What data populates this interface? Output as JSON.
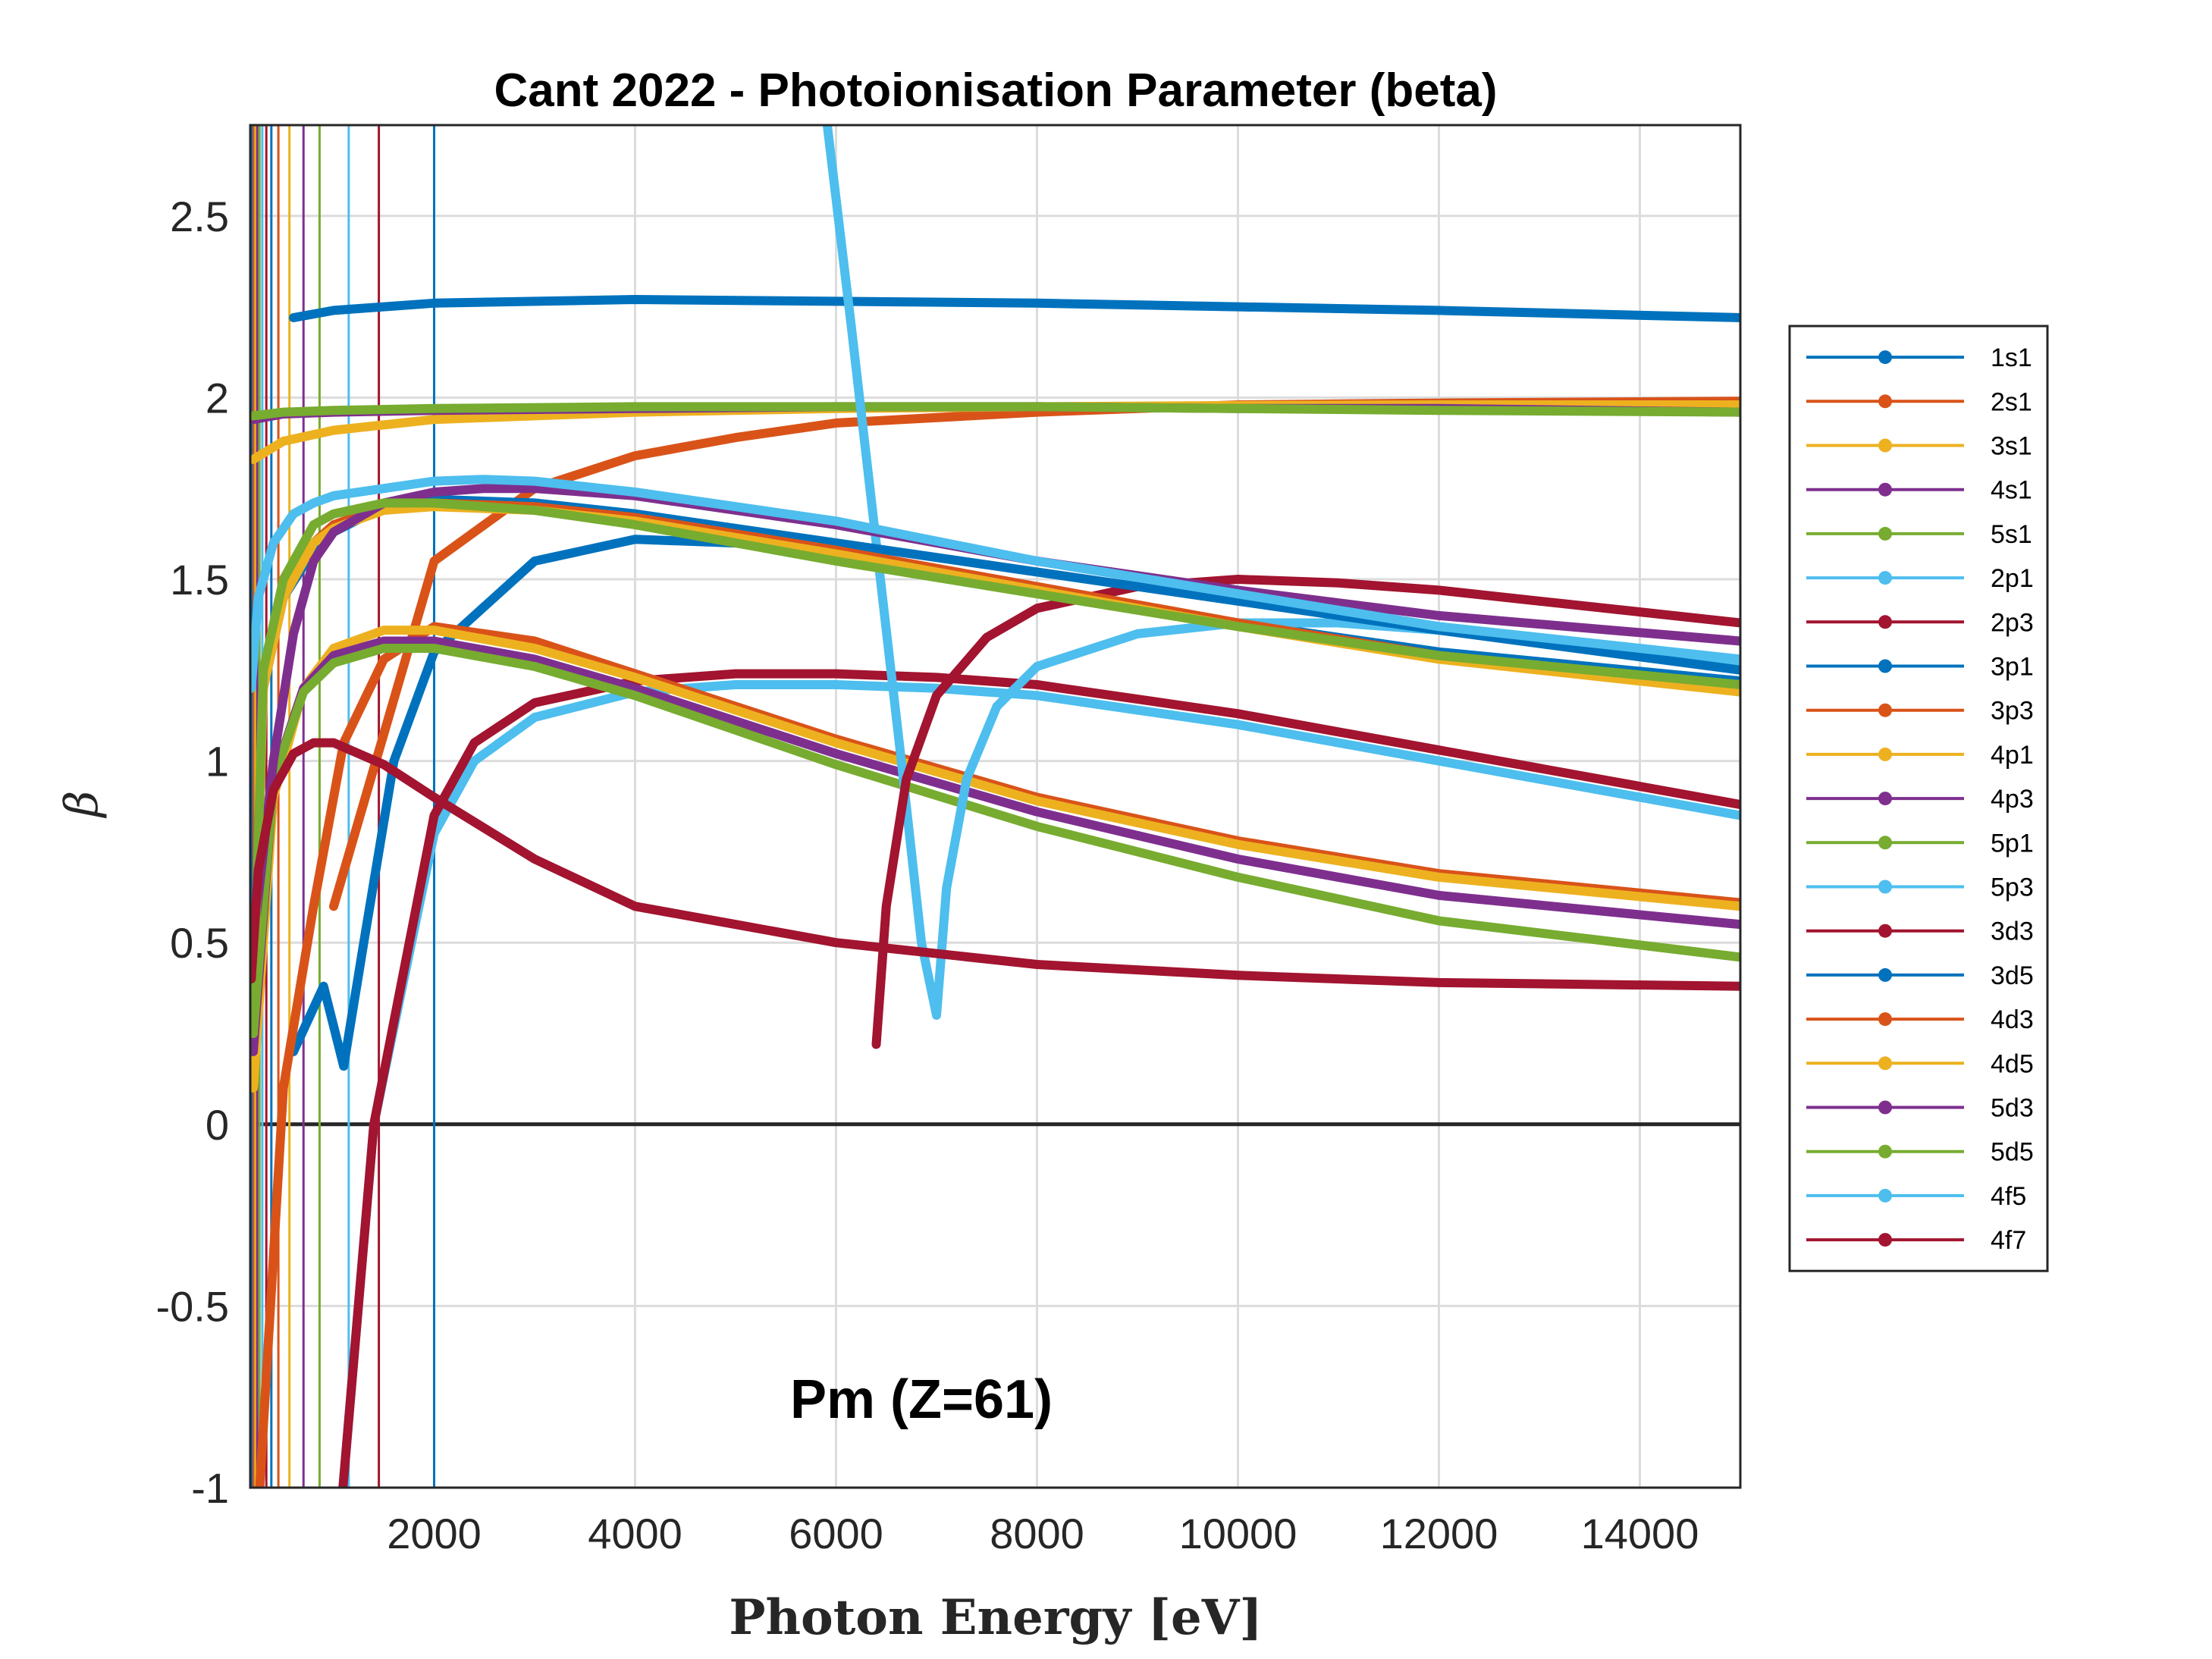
{
  "chart_data": {
    "type": "line",
    "title": "Cant 2022 - Photoionisation Parameter (beta)",
    "xlabel": "Photon Energy [eV]",
    "ylabel": "β",
    "annotation": "Pm (Z=61)",
    "xlim": [
      170,
      15000
    ],
    "ylim": [
      -1,
      2.75
    ],
    "xticks": [
      2000,
      4000,
      6000,
      8000,
      10000,
      12000,
      14000
    ],
    "xtick_labels": [
      "2000",
      "4000",
      "6000",
      "8000",
      "10000",
      "12000",
      "14000"
    ],
    "yticks": [
      -1,
      -0.5,
      0,
      0.5,
      1,
      1.5,
      2,
      2.5
    ],
    "ytick_labels": [
      "-1",
      "-0.5",
      "0",
      "0.5",
      "1",
      "1.5",
      "2",
      "2.5"
    ],
    "grid": true,
    "legend_position": "right",
    "series": [
      {
        "name": "1s1",
        "color": "#0072BD",
        "x": [
          600,
          1000,
          2000,
          4000,
          6000,
          8000,
          10000,
          12000,
          15000
        ],
        "y": [
          2.22,
          2.24,
          2.26,
          2.27,
          2.265,
          2.26,
          2.25,
          2.24,
          2.22
        ]
      },
      {
        "name": "2s1",
        "color": "#D95319",
        "x": [
          1000,
          2000,
          3000,
          4000,
          5000,
          6000,
          8000,
          10000,
          12000,
          15000
        ],
        "y": [
          0.6,
          1.55,
          1.75,
          1.84,
          1.89,
          1.93,
          1.96,
          1.98,
          1.985,
          1.99
        ]
      },
      {
        "name": "3s1",
        "color": "#EDB120",
        "x": [
          200,
          500,
          1000,
          2000,
          4000,
          6000,
          8000,
          10000,
          12000,
          15000
        ],
        "y": [
          1.83,
          1.88,
          1.91,
          1.94,
          1.96,
          1.97,
          1.975,
          1.978,
          1.98,
          1.98
        ]
      },
      {
        "name": "4s1",
        "color": "#7E2F8E",
        "x": [
          200,
          500,
          1000,
          2000,
          4000,
          6000,
          8000,
          10000,
          12000,
          15000
        ],
        "y": [
          1.94,
          1.955,
          1.96,
          1.965,
          1.97,
          1.975,
          1.975,
          1.97,
          1.97,
          1.96
        ]
      },
      {
        "name": "5s1",
        "color": "#77AC30",
        "x": [
          200,
          500,
          1000,
          2000,
          4000,
          6000,
          8000,
          10000,
          12000,
          15000
        ],
        "y": [
          1.95,
          1.96,
          1.965,
          1.97,
          1.975,
          1.975,
          1.975,
          1.97,
          1.965,
          1.96
        ]
      },
      {
        "name": "2p1",
        "color": "#4DBEEE",
        "x": [
          1000,
          1400,
          2000,
          2400,
          3000,
          4000,
          5000,
          6000,
          7000,
          8000,
          9000,
          10000,
          11000,
          12000,
          13000,
          14000,
          15000
        ],
        "y": [
          -1.3,
          0.0,
          0.8,
          1.0,
          1.12,
          1.19,
          1.21,
          1.21,
          1.2,
          1.18,
          1.14,
          1.1,
          1.05,
          1.0,
          0.95,
          0.9,
          0.85
        ]
      },
      {
        "name": "2p3",
        "color": "#A2142F",
        "x": [
          1000,
          1400,
          2000,
          2400,
          3000,
          4000,
          5000,
          6000,
          7000,
          8000,
          9000,
          10000,
          11000,
          12000,
          13000,
          14000,
          15000
        ],
        "y": [
          -1.3,
          0.0,
          0.85,
          1.05,
          1.16,
          1.22,
          1.24,
          1.24,
          1.23,
          1.21,
          1.17,
          1.13,
          1.08,
          1.03,
          0.98,
          0.93,
          0.88
        ]
      },
      {
        "name": "3p1",
        "color": "#0072BD",
        "x": [
          600,
          900,
          1100,
          1300,
          1600,
          2000,
          3000,
          4000,
          5000,
          6000,
          8000,
          10000,
          12000,
          15000
        ],
        "y": [
          0.2,
          0.38,
          0.16,
          0.5,
          1.0,
          1.3,
          1.55,
          1.61,
          1.6,
          1.56,
          1.47,
          1.38,
          1.3,
          1.22
        ]
      },
      {
        "name": "3p3",
        "color": "#D95319",
        "x": [
          200,
          500,
          800,
          1100,
          1500,
          2000,
          3000,
          4000,
          6000,
          8000,
          10000,
          12000,
          15000
        ],
        "y": [
          -1.3,
          0.1,
          0.6,
          1.05,
          1.28,
          1.37,
          1.33,
          1.24,
          1.06,
          0.9,
          0.78,
          0.69,
          0.61
        ]
      },
      {
        "name": "4p1",
        "color": "#EDB120",
        "x": [
          200,
          400,
          700,
          1000,
          1500,
          2000,
          3000,
          4000,
          6000,
          8000,
          10000,
          12000,
          15000
        ],
        "y": [
          0.1,
          0.9,
          1.2,
          1.31,
          1.36,
          1.36,
          1.31,
          1.23,
          1.05,
          0.89,
          0.77,
          0.68,
          0.6
        ]
      },
      {
        "name": "4p3",
        "color": "#7E2F8E",
        "x": [
          200,
          400,
          700,
          1000,
          1500,
          2000,
          3000,
          4000,
          6000,
          8000,
          10000,
          12000,
          15000
        ],
        "y": [
          0.2,
          0.95,
          1.2,
          1.29,
          1.33,
          1.33,
          1.28,
          1.2,
          1.02,
          0.86,
          0.73,
          0.63,
          0.55
        ]
      },
      {
        "name": "5p1",
        "color": "#77AC30",
        "x": [
          200,
          400,
          700,
          1000,
          1500,
          2000,
          3000,
          4000,
          6000,
          8000,
          10000,
          12000,
          15000
        ],
        "y": [
          0.25,
          0.95,
          1.19,
          1.27,
          1.31,
          1.31,
          1.26,
          1.18,
          0.99,
          0.82,
          0.68,
          0.56,
          0.46
        ]
      },
      {
        "name": "5p3",
        "color": "#4DBEEE",
        "x": [
          5900,
          6150,
          6400,
          6650,
          6850,
          7000,
          7100,
          7300,
          7600,
          8000,
          9000,
          10000,
          11000,
          12000,
          13000,
          14000,
          15000
        ],
        "y": [
          2.78,
          2.2,
          1.6,
          1.0,
          0.5,
          0.3,
          0.65,
          0.95,
          1.15,
          1.26,
          1.35,
          1.38,
          1.38,
          1.36,
          1.33,
          1.3,
          1.27
        ]
      },
      {
        "name": "3d3",
        "color": "#A2142F",
        "x": [
          6400,
          6500,
          6700,
          7000,
          7500,
          8000,
          9000,
          10000,
          11000,
          12000,
          13000,
          14000,
          15000
        ],
        "y": [
          0.22,
          0.6,
          0.95,
          1.18,
          1.34,
          1.42,
          1.48,
          1.5,
          1.49,
          1.47,
          1.44,
          1.41,
          1.38
        ]
      },
      {
        "name": "3d5",
        "color": "#0072BD",
        "x": [
          200,
          300,
          500,
          800,
          1000,
          1500,
          2000,
          3000,
          4000,
          6000,
          8000,
          10000,
          12000,
          15000
        ],
        "y": [
          0.3,
          1.2,
          1.45,
          1.58,
          1.63,
          1.7,
          1.72,
          1.71,
          1.68,
          1.6,
          1.52,
          1.44,
          1.36,
          1.25
        ]
      },
      {
        "name": "4d3",
        "color": "#D95319",
        "x": [
          200,
          300,
          500,
          800,
          1000,
          1500,
          2000,
          3000,
          4000,
          6000,
          8000,
          10000,
          12000,
          15000
        ],
        "y": [
          0.3,
          1.2,
          1.45,
          1.6,
          1.65,
          1.7,
          1.71,
          1.7,
          1.67,
          1.58,
          1.48,
          1.38,
          1.29,
          1.2
        ]
      },
      {
        "name": "4d5",
        "color": "#EDB120",
        "x": [
          200,
          300,
          500,
          800,
          1000,
          1500,
          2000,
          3000,
          4000,
          6000,
          8000,
          10000,
          12000,
          15000
        ],
        "y": [
          0.3,
          1.2,
          1.45,
          1.6,
          1.64,
          1.69,
          1.7,
          1.69,
          1.66,
          1.57,
          1.47,
          1.37,
          1.28,
          1.19
        ]
      },
      {
        "name": "5d3",
        "color": "#7E2F8E",
        "x": [
          200,
          400,
          600,
          800,
          1000,
          1500,
          2000,
          2500,
          3000,
          4000,
          6000,
          8000,
          10000,
          12000,
          15000
        ],
        "y": [
          0.5,
          1.0,
          1.35,
          1.55,
          1.63,
          1.71,
          1.74,
          1.75,
          1.75,
          1.73,
          1.65,
          1.55,
          1.47,
          1.4,
          1.33
        ]
      },
      {
        "name": "5d5",
        "color": "#77AC30",
        "x": [
          200,
          300,
          500,
          800,
          1000,
          1500,
          2000,
          3000,
          4000,
          6000,
          8000,
          10000,
          12000,
          15000
        ],
        "y": [
          0.3,
          1.25,
          1.5,
          1.65,
          1.68,
          1.71,
          1.71,
          1.69,
          1.65,
          1.55,
          1.46,
          1.37,
          1.29,
          1.21
        ]
      },
      {
        "name": "4f5",
        "color": "#4DBEEE",
        "x": [
          180,
          250,
          400,
          600,
          800,
          1000,
          1500,
          2000,
          2500,
          3000,
          4000,
          6000,
          8000,
          10000,
          12000,
          15000
        ],
        "y": [
          1.2,
          1.45,
          1.6,
          1.68,
          1.71,
          1.73,
          1.75,
          1.77,
          1.775,
          1.77,
          1.74,
          1.66,
          1.55,
          1.46,
          1.37,
          1.28
        ]
      },
      {
        "name": "4f7",
        "color": "#A2142F",
        "x": [
          180,
          250,
          400,
          600,
          800,
          1000,
          1500,
          2000,
          3000,
          4000,
          5000,
          6000,
          8000,
          10000,
          12000,
          15000
        ],
        "y": [
          0.4,
          0.7,
          0.92,
          1.02,
          1.05,
          1.05,
          0.99,
          0.9,
          0.73,
          0.6,
          0.55,
          0.5,
          0.44,
          0.41,
          0.39,
          0.38
        ]
      }
    ]
  }
}
